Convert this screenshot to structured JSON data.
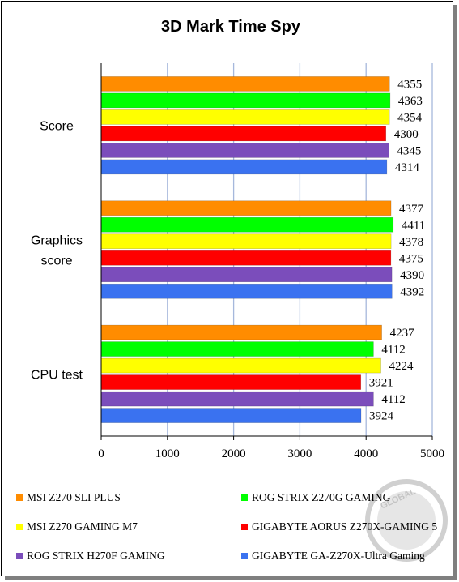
{
  "chart_data": {
    "type": "bar",
    "orientation": "horizontal",
    "title": "3D Mark Time Spy",
    "categories": [
      "Score",
      "Graphics score",
      "CPU test"
    ],
    "category_lines": [
      [
        "Score"
      ],
      [
        "Graphics",
        "score"
      ],
      [
        "CPU test"
      ]
    ],
    "series": [
      {
        "name": "MSI Z270 SLI PLUS",
        "color": "#ff8c00",
        "values": [
          4355,
          4377,
          4237
        ]
      },
      {
        "name": "ROG STRIX Z270G GAMING",
        "color": "#00ff00",
        "values": [
          4363,
          4411,
          4112
        ]
      },
      {
        "name": "MSI Z270 GAMING M7",
        "color": "#ffff00",
        "values": [
          4354,
          4378,
          4224
        ]
      },
      {
        "name": "GIGABYTE AORUS Z270X-GAMING 5",
        "color": "#ff0000",
        "values": [
          4300,
          4375,
          3921
        ]
      },
      {
        "name": "ROG STRIX H270F GAMING",
        "color": "#7b4dbb",
        "values": [
          4345,
          4390,
          4112
        ]
      },
      {
        "name": "GIGABYTE GA-Z270X-Ultra Gaming",
        "color": "#3a72f0",
        "values": [
          4314,
          4392,
          3924
        ]
      }
    ],
    "xlim": [
      0,
      5000
    ],
    "xticks": [
      0,
      1000,
      2000,
      3000,
      4000,
      5000
    ],
    "xlabel": "",
    "ylabel": "",
    "grid": true,
    "legend_position": "bottom"
  },
  "watermark": {
    "text": "GLOBAL",
    "color": "#c8c8c8"
  }
}
